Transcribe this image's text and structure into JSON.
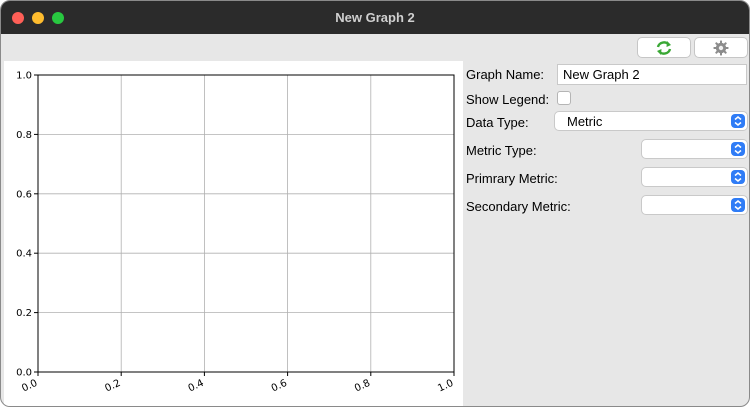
{
  "window": {
    "title": "New Graph 2"
  },
  "chart_data": {
    "type": "line",
    "title": "",
    "xlabel": "",
    "ylabel": "",
    "xlim": [
      0.0,
      1.0
    ],
    "ylim": [
      0.0,
      1.0
    ],
    "xticks": [
      "0.0",
      "0.2",
      "0.4",
      "0.6",
      "0.8",
      "1.0"
    ],
    "yticks": [
      "0.0",
      "0.2",
      "0.4",
      "0.6",
      "0.8",
      "1.0"
    ],
    "grid": true,
    "series": []
  },
  "form": {
    "graph_name": {
      "label": "Graph Name:",
      "value": "New Graph 2"
    },
    "show_legend": {
      "label": "Show Legend:",
      "checked": false
    },
    "data_type": {
      "label": "Data Type:",
      "value": "Metric"
    },
    "metric_type": {
      "label": "Metric Type:",
      "value": ""
    },
    "primary_metric": {
      "label": "Primrary Metric:",
      "value": ""
    },
    "secondary_metric": {
      "label": "Secondary Metric:",
      "value": ""
    }
  },
  "icons": {
    "refresh": "refresh-icon",
    "settings": "gear-icon"
  },
  "colors": {
    "accent": "#2f7cf6",
    "refresh": "#3aa835",
    "titlebar": "#2b2b2b"
  }
}
